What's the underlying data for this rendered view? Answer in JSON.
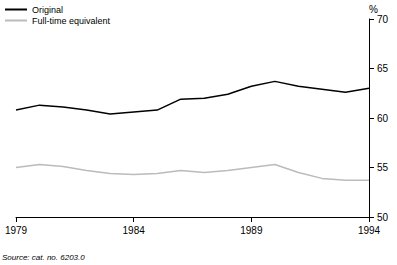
{
  "chart_data": {
    "type": "line",
    "y_label": "%",
    "source": "Source: cat. no. 6203.0",
    "x": [
      1979,
      1980,
      1981,
      1982,
      1983,
      1984,
      1985,
      1986,
      1987,
      1988,
      1989,
      1990,
      1991,
      1992,
      1993,
      1994
    ],
    "series": [
      {
        "name": "Original",
        "color": "#000000",
        "values": [
          60.8,
          61.3,
          61.1,
          60.8,
          60.4,
          60.6,
          60.8,
          61.9,
          62.0,
          62.4,
          63.2,
          63.7,
          63.2,
          62.9,
          62.6,
          63.0
        ]
      },
      {
        "name": "Full-time equivalent",
        "color": "#bbbbbb",
        "values": [
          55.0,
          55.3,
          55.1,
          54.7,
          54.4,
          54.3,
          54.4,
          54.7,
          54.5,
          54.7,
          55.0,
          55.3,
          54.5,
          53.9,
          53.7,
          53.7
        ]
      }
    ],
    "xlim": [
      1979,
      1994
    ],
    "xticks": [
      1979,
      1984,
      1989,
      1994
    ],
    "ylim": [
      50,
      70
    ],
    "yticks": [
      50,
      55,
      60,
      65,
      70
    ],
    "grid": false,
    "legend": "upper left"
  }
}
